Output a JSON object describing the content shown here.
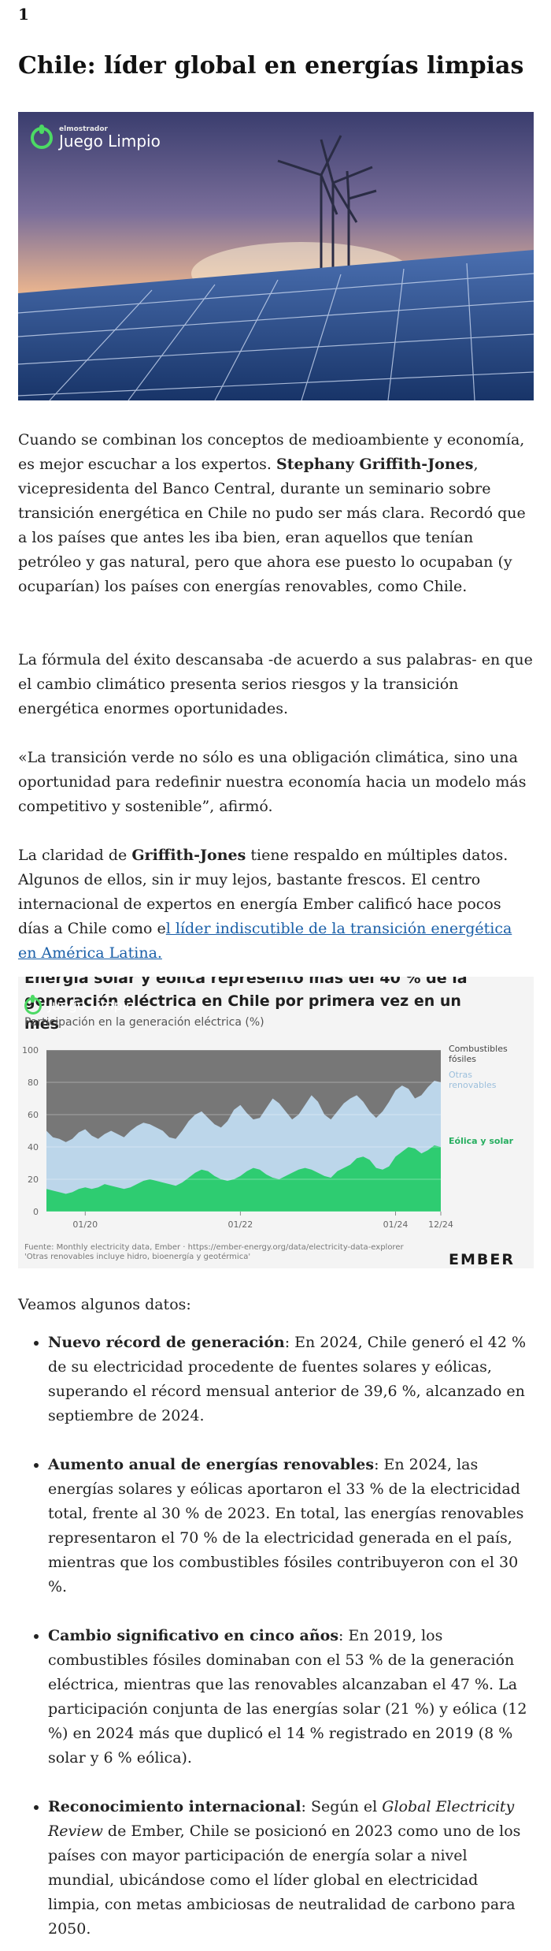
{
  "page_number": "1",
  "article": {
    "title": "Chile: líder global en energías limpias",
    "hero_brand": {
      "small": "elmostrador",
      "big": "Juego Limpio"
    },
    "p1": {
      "a": "Cuando se combinan los conceptos de medioambiente y economía, es mejor escuchar a los expertos. ",
      "bold": "Stephany Griffith-Jones",
      "b": ", vicepresidenta del Banco Central, durante un seminario sobre transición energética en Chile no pudo ser más clara. Recordó que a los países que antes les iba bien, eran aquellos que tenían petróleo y gas natural, pero que ahora ese puesto lo ocupaban (y ocuparían) los países con energías renovables, como Chile."
    },
    "p2": "La fórmula del éxito descansaba -de acuerdo a sus palabras- en que el cambio climático presenta serios riesgos y la transición energética enormes oportunidades.",
    "p3": "«La transición verde no sólo es una obligación climática, sino una oportunidad para redefinir nuestra economía hacia un modelo más competitivo y sostenible”, afirmó.",
    "p4": {
      "a": "La claridad de ",
      "bold": "Griffith-Jones",
      "b": " tiene respaldo en múltiples datos. Algunos de ellos, sin ir muy lejos, bastante frescos. El centro internacional de expertos en energía Ember calificó hace pocos días a Chile como e",
      "link": "l líder indiscutible de la transición energética en América Latina."
    },
    "intro_list": "Veamos algunos datos:",
    "facts": [
      {
        "bold": "Nuevo récord de generación",
        "text": ": En 2024, Chile generó el 42 % de su electricidad procedente de fuentes solares y eólicas, superando el récord mensual anterior de 39,6 %, alcanzado en septiembre de 2024."
      },
      {
        "bold": "Aumento anual de energías renovables",
        "text": ": En 2024, las energías solares y eólicas aportaron el 33 % de la electricidad total, frente al 30 % de 2023. En total, las energías renovables representaron el 70 % de la electricidad generada en el país, mientras que los combustibles fósiles contribuyeron con el 30 %."
      },
      {
        "bold": "Cambio significativo en cinco años",
        "text": ": En 2019, los combustibles fósiles dominaban con el 53 % de la generación eléctrica, mientras que las renovables alcanzaban el 47 %. La participación conjunta de las energías solar (21 %) y eólica (12 %) en 2024 más que duplicó el 14 % registrado en 2019 (8 % solar y 6 % eólica)."
      },
      {
        "bold": "Reconocimiento internacional",
        "text_a": ": Según el ",
        "italic": "Global Electricity Review",
        "text_b": " de Ember, Chile se posicionó en 2023 como uno de los países con mayor participación de energía solar a nivel mundial, ubicándose como el líder global en electricidad limpia, con metas ambiciosas de neutralidad de carbono para 2050."
      }
    ]
  },
  "chart_data": {
    "type": "area",
    "title": "Energía solar y eólica representó más del 40 % de la generación eléctrica en Chile por primera vez en un mes",
    "subtitle": "Participación en la generación eléctrica (%)",
    "brand": "Juego Limpio",
    "x_ticks": [
      "01/20",
      "01/22",
      "01/24",
      "12/24"
    ],
    "y_ticks": [
      "0",
      "20",
      "40",
      "60",
      "80",
      "100"
    ],
    "ylim": [
      0,
      100
    ],
    "series": [
      {
        "name": "Eólica y solar",
        "color": "#2ecc71",
        "values": [
          14,
          13,
          12,
          11,
          12,
          14,
          15,
          14,
          15,
          17,
          16,
          15,
          14,
          15,
          17,
          19,
          20,
          19,
          18,
          17,
          16,
          18,
          21,
          24,
          26,
          25,
          22,
          20,
          19,
          20,
          22,
          25,
          27,
          26,
          23,
          21,
          20,
          22,
          24,
          26,
          27,
          26,
          24,
          22,
          21,
          25,
          27,
          29,
          33,
          34,
          32,
          27,
          26,
          28,
          34,
          37,
          40,
          39,
          36,
          38,
          41,
          40
        ]
      },
      {
        "name": "Otras renovables",
        "color": "#bcd6ea",
        "values": [
          50,
          46,
          45,
          43,
          45,
          49,
          51,
          47,
          45,
          48,
          50,
          48,
          46,
          50,
          53,
          55,
          54,
          52,
          50,
          46,
          45,
          50,
          56,
          60,
          62,
          58,
          54,
          52,
          56,
          63,
          66,
          61,
          57,
          58,
          64,
          70,
          67,
          62,
          57,
          60,
          66,
          72,
          68,
          60,
          57,
          62,
          67,
          70,
          72,
          68,
          62,
          58,
          62,
          68,
          75,
          78,
          76,
          70,
          72,
          77,
          81,
          80
        ]
      },
      {
        "name": "Combustibles fósiles",
        "color": "#777777",
        "values_note": "remainder to 100"
      }
    ],
    "source": "Fuente: Monthly electricity data, Ember · https://ember-energy.org/data/electricity-data-explorer",
    "footnote": "'Otras renovables incluye hidro, bioenergía y geotérmica'",
    "publisher": "EMBER"
  }
}
